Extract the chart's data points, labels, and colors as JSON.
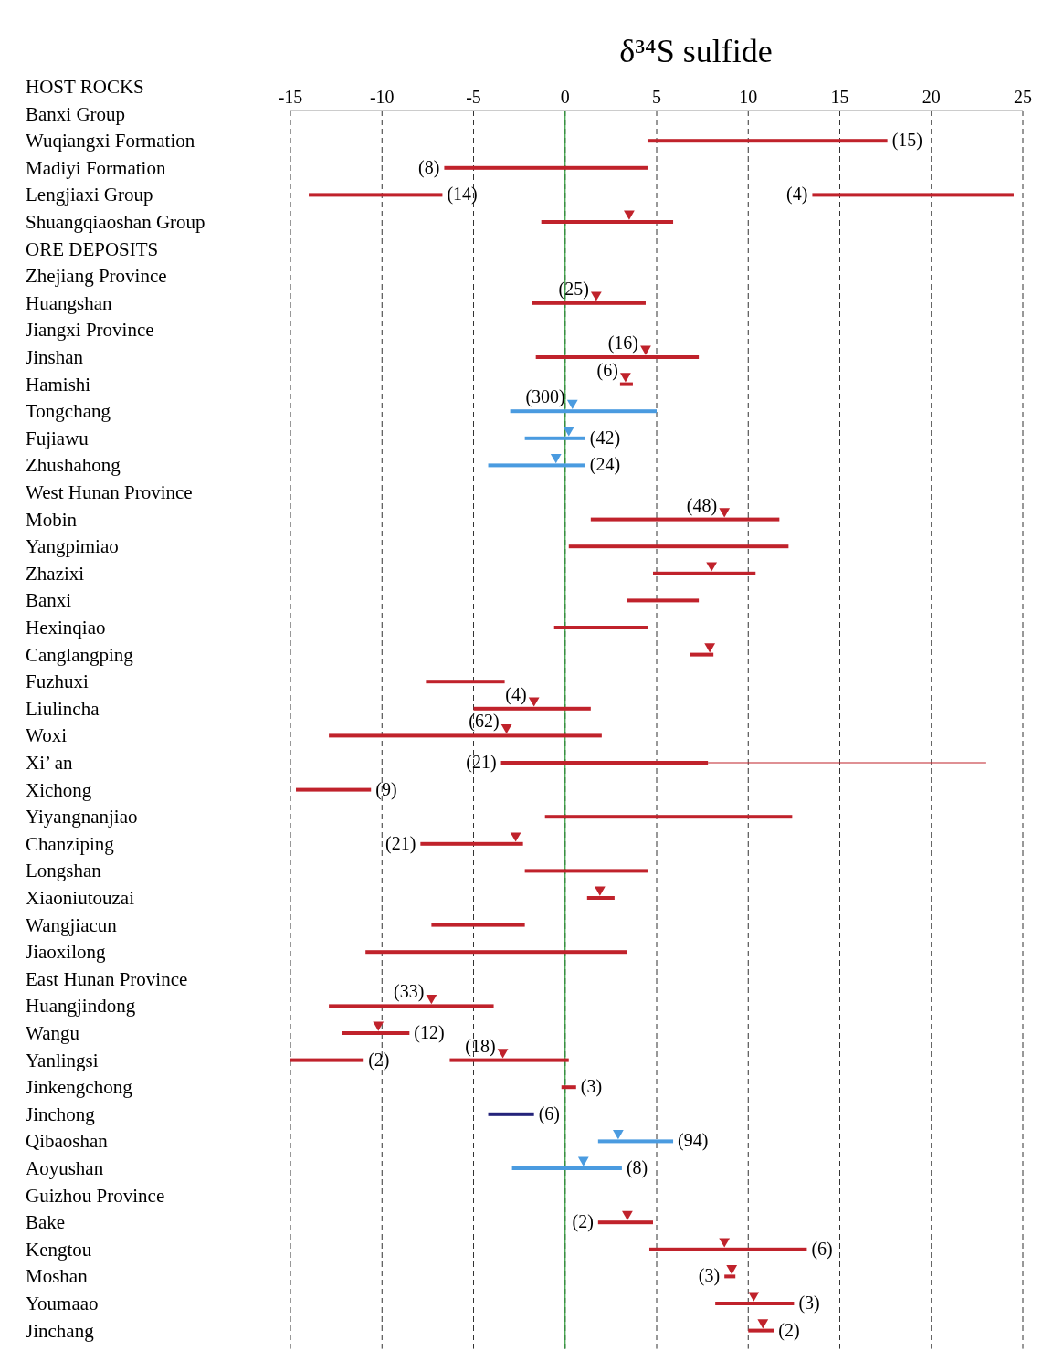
{
  "chart_data": {
    "type": "bar",
    "orientation": "horizontal",
    "title": "δ³⁴S sulfide",
    "categories": [
      "HOST ROCKS",
      "Banxi Group",
      "Wuqiangxi Formation",
      "Madiyi Formation",
      "Lengjiaxi Group",
      "Shuangqiaoshan Group",
      "ORE DEPOSITS",
      "Zhejiang Province",
      "Huangshan",
      "Jiangxi Province",
      "Jinshan",
      "Hamishi",
      "Tongchang",
      "Fujiawu",
      "Zhushahong",
      "West Hunan Province",
      "Mobin",
      "Yangpimiao",
      "Zhazixi",
      "Banxi",
      "Hexinqiao",
      "Canglangping",
      "Fuzhuxi",
      "Liulincha",
      "Woxi",
      "Xi’ an",
      "Xichong",
      "Yiyangnanjiao",
      "Chanziping",
      "Longshan",
      "Xiaoniutouzai",
      "Wangjiacun",
      "Jiaoxilong",
      "East Hunan Province",
      "Huangjindong",
      "Wangu",
      "Yanlingsi",
      "Jinkengchong",
      "Jinchong",
      "Qibaoshan",
      "Aoyushan",
      "Guizhou Province",
      "Bake",
      "Kengtou",
      "Moshan",
      "Youmaao",
      "Jinchang"
    ],
    "series": [
      {
        "base": [
          null,
          null,
          4.5,
          -6.6,
          -14.0,
          -1.3,
          null,
          null,
          -1.8,
          null,
          -1.6,
          3.0,
          -3.0,
          -2.2,
          -4.2,
          null,
          1.4,
          0.2,
          4.8,
          3.4,
          -0.6,
          6.8,
          -7.6,
          -5.0,
          -12.9,
          -3.5,
          -14.7,
          -1.1,
          -7.9,
          -2.2,
          1.2,
          -7.3,
          -10.9,
          null,
          -12.9,
          -12.2,
          -6.3,
          -0.2,
          -4.2,
          1.8,
          -2.9,
          null,
          1.8,
          4.6,
          8.7,
          8.2,
          10.0
        ],
        "values": [
          null,
          null,
          13.1,
          11.1,
          7.3,
          7.2,
          null,
          null,
          6.2,
          null,
          8.9,
          0.7,
          8.0,
          3.3,
          5.3,
          null,
          10.3,
          12.0,
          5.6,
          3.9,
          5.1,
          1.3,
          4.3,
          6.4,
          14.9,
          11.3,
          4.1,
          13.5,
          5.6,
          6.7,
          1.5,
          5.1,
          14.3,
          null,
          9.0,
          3.7,
          6.5,
          0.8,
          2.5,
          4.1,
          6.0,
          null,
          3.0,
          8.6,
          0.6,
          4.3,
          1.4
        ],
        "errors": [
          null,
          null,
          null,
          null,
          null,
          null,
          null,
          null,
          null,
          null,
          null,
          null,
          null,
          null,
          null,
          null,
          null,
          null,
          null,
          null,
          null,
          null,
          null,
          null,
          null,
          [
            7.8,
            23.0
          ],
          null,
          null,
          null,
          null,
          null,
          null,
          null,
          null,
          null,
          null,
          null,
          null,
          null,
          null,
          null,
          null,
          null,
          null,
          null,
          null,
          null
        ],
        "colors": [
          null,
          null,
          "#c0222b",
          "#c0222b",
          "#c0222b",
          "#c0222b",
          null,
          null,
          "#c0222b",
          null,
          "#c0222b",
          "#c0222b",
          "#4a9be0",
          "#4a9be0",
          "#4a9be0",
          null,
          "#c0222b",
          "#c0222b",
          "#c0222b",
          "#c0222b",
          "#c0222b",
          "#c0222b",
          "#c0222b",
          "#c0222b",
          "#c0222b",
          "#c0222b",
          "#c0222b",
          "#c0222b",
          "#c0222b",
          "#c0222b",
          "#c0222b",
          "#c0222b",
          "#c0222b",
          null,
          "#c0222b",
          "#c0222b",
          "#c0222b",
          "#c0222b",
          "#24237a",
          "#4a9be0",
          "#4a9be0",
          null,
          "#c0222b",
          "#c0222b",
          "#c0222b",
          "#c0222b",
          "#c0222b"
        ]
      },
      {
        "color": "#c0222b",
        "base": [
          null,
          null,
          null,
          null,
          13.5,
          null,
          null,
          null,
          null,
          null,
          null,
          null,
          null,
          null,
          null,
          null,
          null,
          null,
          null,
          null,
          null,
          null,
          null,
          null,
          null,
          null,
          null,
          null,
          null,
          null,
          null,
          null,
          null,
          null,
          null,
          null,
          -15.0,
          null,
          null,
          null,
          null,
          null,
          null,
          null,
          null,
          null,
          null
        ],
        "values": [
          null,
          null,
          null,
          null,
          11.0,
          null,
          null,
          null,
          null,
          null,
          null,
          null,
          null,
          null,
          null,
          null,
          null,
          null,
          null,
          null,
          null,
          null,
          null,
          null,
          null,
          null,
          null,
          null,
          null,
          null,
          null,
          null,
          null,
          null,
          null,
          null,
          4.0,
          null,
          null,
          null,
          null,
          null,
          null,
          null,
          null,
          null,
          null
        ]
      },
      {
        "type": "scatter",
        "marker": "triangle",
        "x": [
          "Shuangqiaoshan Group",
          "Huangshan",
          "Jinshan",
          "Hamishi",
          "Tongchang",
          "Fujiawu",
          "Zhushahong",
          "Mobin",
          "Zhazixi",
          "Canglangping",
          "Liulincha",
          "Woxi",
          "Chanziping",
          "Xiaoniutouzai",
          "Huangjindong",
          "Wangu",
          "Yanlingsi",
          "Qibaoshan",
          "Aoyushan",
          "Bake",
          "Kengtou",
          "Moshan",
          "Youmaao",
          "Jinchang"
        ],
        "values": [
          3.5,
          1.7,
          4.4,
          3.3,
          0.4,
          0.2,
          -0.5,
          8.7,
          8.0,
          7.9,
          -1.7,
          -3.2,
          -2.7,
          1.9,
          -7.3,
          -10.2,
          -3.4,
          2.9,
          1.0,
          3.4,
          8.7,
          9.1,
          10.3,
          10.8
        ],
        "colors": [
          "#c0222b",
          "#c0222b",
          "#c0222b",
          "#c0222b",
          "#4a9be0",
          "#4a9be0",
          "#4a9be0",
          "#c0222b",
          "#c0222b",
          "#c0222b",
          "#c0222b",
          "#c0222b",
          "#c0222b",
          "#c0222b",
          "#c0222b",
          "#c0222b",
          "#c0222b",
          "#4a9be0",
          "#4a9be0",
          "#c0222b",
          "#c0222b",
          "#c0222b",
          "#c0222b",
          "#c0222b"
        ]
      }
    ],
    "xlim": [
      -15,
      25
    ],
    "xticks": [
      -15,
      -10,
      -5,
      0,
      5,
      10,
      15,
      20,
      25
    ],
    "grid": "x",
    "ref_lines": [
      {
        "axis": "x",
        "value": 0,
        "color": "#2e9b3a"
      }
    ],
    "annotations": [
      {
        "text": "(15)",
        "x": 17.6,
        "y": "Wuqiangxi Formation"
      },
      {
        "text": "(8)",
        "x": -6.6,
        "y": "Madiyi Formation"
      },
      {
        "text": "(14)",
        "x": -6.7,
        "y": "Lengjiaxi Group"
      },
      {
        "text": "(4)",
        "x": 13.5,
        "y": "Lengjiaxi Group"
      },
      {
        "text": "(25)",
        "x": 1.7,
        "y": "Huangshan"
      },
      {
        "text": "(16)",
        "x": 4.4,
        "y": "Jinshan"
      },
      {
        "text": "(6)",
        "x": 3.3,
        "y": "Hamishi"
      },
      {
        "text": "(300)",
        "x": 0.4,
        "y": "Tongchang"
      },
      {
        "text": "(42)",
        "x": 1.1,
        "y": "Fujiawu"
      },
      {
        "text": "(24)",
        "x": 1.1,
        "y": "Zhushahong"
      },
      {
        "text": "(48)",
        "x": 8.7,
        "y": "Mobin"
      },
      {
        "text": "(4)",
        "x": -1.7,
        "y": "Liulincha"
      },
      {
        "text": "(62)",
        "x": -3.2,
        "y": "Woxi"
      },
      {
        "text": "(21)",
        "x": -3.5,
        "y": "Xi’ an"
      },
      {
        "text": "(9)",
        "x": -10.6,
        "y": "Xichong"
      },
      {
        "text": "(21)",
        "x": -7.9,
        "y": "Chanziping"
      },
      {
        "text": "(33)",
        "x": -7.3,
        "y": "Huangjindong"
      },
      {
        "text": "(12)",
        "x": -8.5,
        "y": "Wangu"
      },
      {
        "text": "(2)",
        "x": -11.0,
        "y": "Yanlingsi"
      },
      {
        "text": "(18)",
        "x": -3.4,
        "y": "Yanlingsi"
      },
      {
        "text": "(3)",
        "x": 0.6,
        "y": "Jinkengchong"
      },
      {
        "text": "(6)",
        "x": -1.7,
        "y": "Jinchong"
      },
      {
        "text": "(94)",
        "x": 5.9,
        "y": "Qibaoshan"
      },
      {
        "text": "(8)",
        "x": 3.1,
        "y": "Aoyushan"
      },
      {
        "text": "(2)",
        "x": 1.8,
        "y": "Bake"
      },
      {
        "text": "(6)",
        "x": 13.2,
        "y": "Kengtou"
      },
      {
        "text": "(3)",
        "x": 8.7,
        "y": "Moshan"
      },
      {
        "text": "(3)",
        "x": 12.5,
        "y": "Youmaao"
      },
      {
        "text": "(2)",
        "x": 11.4,
        "y": "Jinchang"
      }
    ]
  }
}
